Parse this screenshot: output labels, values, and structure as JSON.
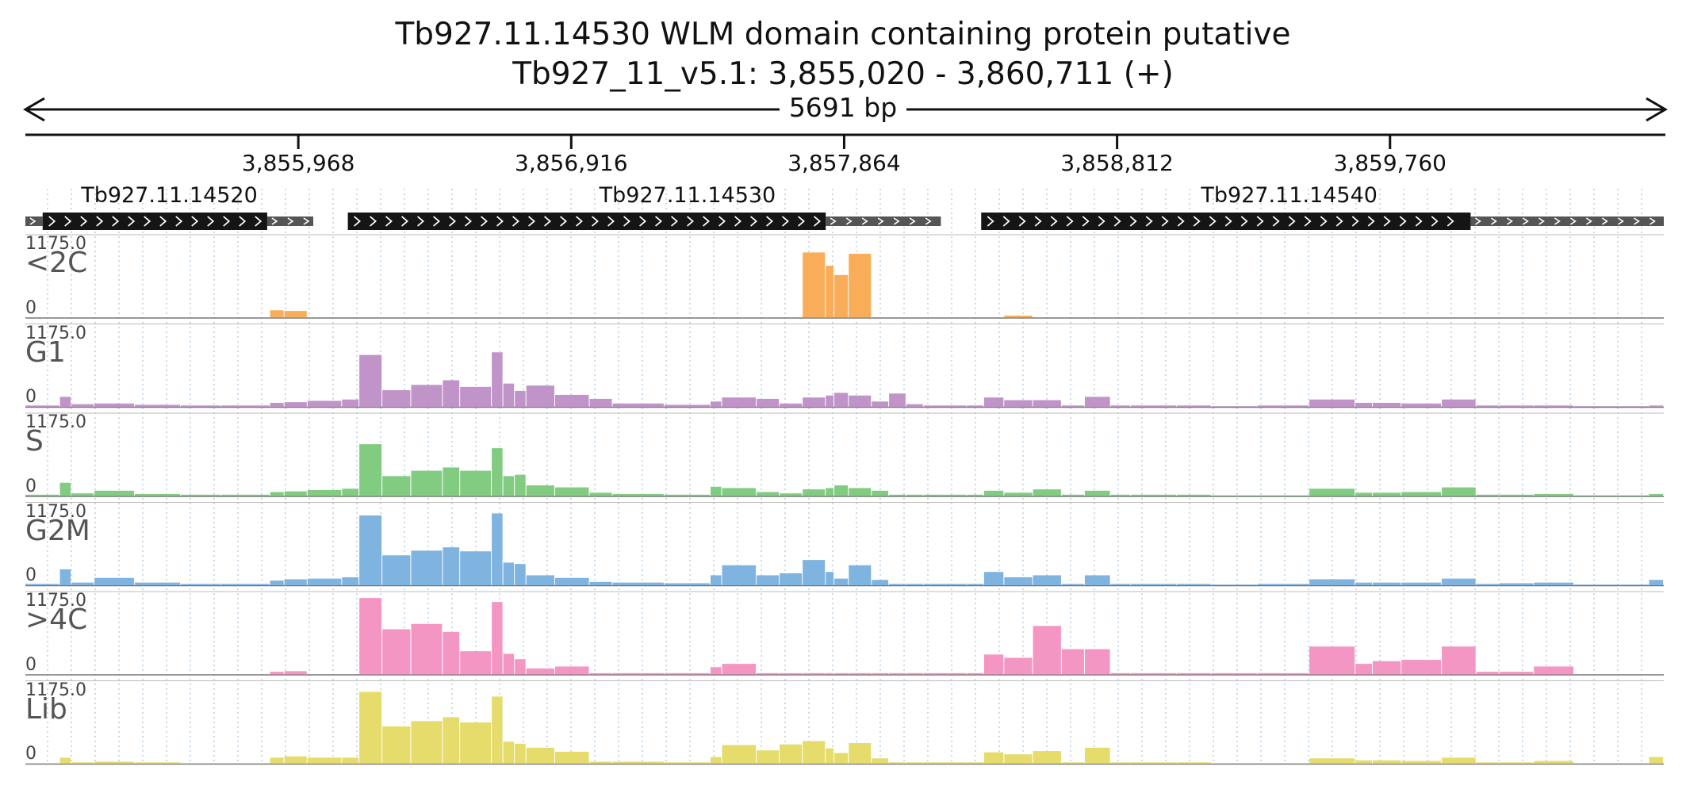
{
  "header": {
    "title_line1": "Tb927.11.14530  WLM domain containing protein  putative",
    "title_line2": "Tb927_11_v5.1: 3,855,020 - 3,860,711 (+)",
    "span_label": "5691 bp"
  },
  "region": {
    "start": 3855020,
    "end": 3860711
  },
  "axis": {
    "ticks": [
      {
        "pos": 3855968,
        "label": "3,855,968"
      },
      {
        "pos": 3856916,
        "label": "3,856,916"
      },
      {
        "pos": 3857864,
        "label": "3,857,864"
      },
      {
        "pos": 3858812,
        "label": "3,858,812"
      },
      {
        "pos": 3859760,
        "label": "3,859,760"
      }
    ]
  },
  "genes": [
    {
      "name": "Tb927.11.14520",
      "label_pos": 3855520,
      "cds": [
        3855080,
        3855860
      ],
      "utr": [
        [
          3855020,
          3855080
        ],
        [
          3855860,
          3856020
        ]
      ]
    },
    {
      "name": "Tb927.11.14530",
      "label_pos": 3857320,
      "cds": [
        3856140,
        3857800
      ],
      "utr": [
        [
          3857800,
          3858200
        ]
      ]
    },
    {
      "name": "Tb927.11.14540",
      "label_pos": 3859410,
      "cds": [
        3858340,
        3860040
      ],
      "utr": [
        [
          3860040,
          3860711
        ]
      ]
    }
  ],
  "colors": {
    "<2C": "#f9ad58",
    "G1": "#c094c8",
    "S": "#82cc82",
    "G2M": "#7fb3e0",
    ">4C": "#f496c4",
    "Lib": "#e5dc6c"
  },
  "tracks": [
    {
      "name": "<2C",
      "max": "1175.0",
      "min": "0"
    },
    {
      "name": "G1",
      "max": "1175.0",
      "min": "0"
    },
    {
      "name": "S",
      "max": "1175.0",
      "min": "0"
    },
    {
      "name": "G2M",
      "max": "1175.0",
      "min": "0"
    },
    {
      "name": ">4C",
      "max": "1175.0",
      "min": "0"
    },
    {
      "name": "Lib",
      "max": "1175.0",
      "min": "0"
    }
  ],
  "chart_data": {
    "type": "area",
    "x_unit": "bp",
    "ylim": [
      0,
      1175
    ],
    "x": [
      3855020,
      3855140,
      3855180,
      3855260,
      3855400,
      3855560,
      3855700,
      3855870,
      3855920,
      3856000,
      3856120,
      3856180,
      3856260,
      3856360,
      3856470,
      3856530,
      3856640,
      3856680,
      3856720,
      3856760,
      3856860,
      3856980,
      3857060,
      3857240,
      3857400,
      3857440,
      3857560,
      3857640,
      3857720,
      3857800,
      3857830,
      3857880,
      3857960,
      3858020,
      3858080,
      3858140,
      3858290,
      3858350,
      3858420,
      3858520,
      3858620,
      3858700,
      3858790,
      3858860,
      3859020,
      3859140,
      3859300,
      3859480,
      3859640,
      3859700,
      3859800,
      3859940,
      3860060,
      3860140,
      3860260,
      3860400,
      3860560,
      3860660
    ],
    "series": [
      {
        "name": "<2C",
        "values": [
          0,
          0,
          0,
          0,
          0,
          0,
          0,
          110,
          100,
          0,
          0,
          0,
          0,
          0,
          0,
          0,
          0,
          0,
          0,
          0,
          0,
          0,
          0,
          0,
          0,
          0,
          0,
          0,
          980,
          780,
          640,
          960,
          0,
          0,
          0,
          0,
          0,
          0,
          30,
          0,
          0,
          0,
          0,
          0,
          0,
          0,
          0,
          0,
          0,
          0,
          0,
          0,
          0,
          0,
          0,
          0,
          0,
          0
        ]
      },
      {
        "name": "G1",
        "values": [
          20,
          150,
          40,
          50,
          30,
          20,
          20,
          60,
          70,
          90,
          110,
          780,
          250,
          330,
          400,
          300,
          820,
          350,
          240,
          320,
          180,
          120,
          50,
          30,
          80,
          140,
          120,
          50,
          140,
          170,
          210,
          170,
          80,
          200,
          40,
          20,
          20,
          140,
          100,
          100,
          20,
          150,
          20,
          20,
          20,
          10,
          20,
          110,
          60,
          60,
          50,
          110,
          20,
          20,
          20,
          10,
          10,
          20
        ]
      },
      {
        "name": "S",
        "values": [
          20,
          200,
          40,
          80,
          30,
          20,
          20,
          60,
          70,
          90,
          110,
          780,
          300,
          380,
          430,
          380,
          720,
          300,
          320,
          160,
          130,
          50,
          30,
          20,
          140,
          120,
          60,
          40,
          100,
          120,
          160,
          120,
          80,
          20,
          20,
          20,
          20,
          80,
          50,
          100,
          20,
          80,
          20,
          20,
          20,
          10,
          10,
          110,
          50,
          50,
          60,
          130,
          20,
          20,
          30,
          10,
          10,
          30
        ]
      },
      {
        "name": "G2M",
        "values": [
          20,
          240,
          40,
          110,
          40,
          20,
          20,
          70,
          90,
          100,
          120,
          1050,
          450,
          520,
          570,
          510,
          1080,
          340,
          320,
          150,
          110,
          50,
          40,
          30,
          150,
          300,
          150,
          180,
          380,
          200,
          100,
          300,
          80,
          20,
          20,
          20,
          20,
          200,
          120,
          150,
          20,
          150,
          20,
          20,
          20,
          10,
          20,
          90,
          40,
          40,
          40,
          100,
          20,
          30,
          40,
          10,
          10,
          80
        ]
      },
      {
        "name": ">4C",
        "values": [
          0,
          0,
          0,
          0,
          0,
          0,
          0,
          40,
          50,
          0,
          0,
          1150,
          680,
          760,
          640,
          350,
          1090,
          310,
          230,
          90,
          120,
          20,
          20,
          20,
          110,
          160,
          20,
          20,
          20,
          20,
          20,
          20,
          20,
          20,
          20,
          20,
          20,
          300,
          250,
          730,
          380,
          380,
          20,
          20,
          20,
          20,
          20,
          420,
          160,
          200,
          220,
          420,
          40,
          40,
          120,
          0,
          0,
          0
        ]
      },
      {
        "name": "Lib",
        "values": [
          0,
          90,
          20,
          30,
          20,
          10,
          10,
          90,
          110,
          90,
          90,
          1080,
          560,
          640,
          700,
          620,
          1010,
          330,
          300,
          240,
          180,
          30,
          30,
          20,
          100,
          280,
          200,
          290,
          340,
          230,
          160,
          310,
          80,
          20,
          20,
          20,
          20,
          170,
          140,
          190,
          20,
          240,
          20,
          20,
          20,
          10,
          10,
          80,
          50,
          50,
          40,
          90,
          20,
          20,
          40,
          10,
          10,
          100
        ]
      }
    ]
  }
}
